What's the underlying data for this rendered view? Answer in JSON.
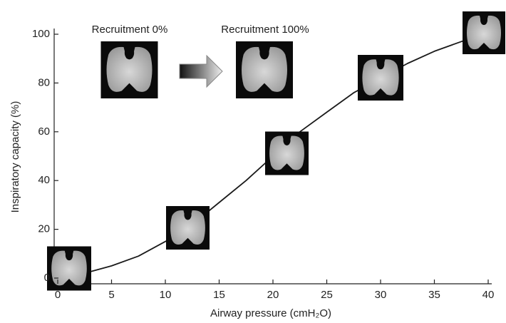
{
  "chart_data": {
    "type": "line",
    "x_label": "Airway pressure (cmH₂O)",
    "y_label": "Inspiratory capacity (%)",
    "annotations": [
      "Recruitment 0%",
      "Recruitment 100%"
    ],
    "x": [
      0,
      2.5,
      5,
      7.5,
      10,
      12.5,
      15,
      17.5,
      20,
      22.5,
      25,
      27.5,
      30,
      32.5,
      35,
      37.5,
      40
    ],
    "series": [
      {
        "color": "#1a1a1a",
        "values": [
          0,
          2,
          5,
          9,
          15,
          22,
          31,
          40,
          50,
          60,
          68,
          76,
          82,
          88,
          93,
          97,
          100
        ]
      }
    ],
    "xlim": [
      0,
      40
    ],
    "xticks": [
      0,
      5,
      10,
      15,
      20,
      25,
      30,
      35,
      40
    ],
    "ylim": [
      0,
      100
    ],
    "yticks": [
      0,
      20,
      40,
      60,
      80,
      100
    ],
    "grid": false
  }
}
